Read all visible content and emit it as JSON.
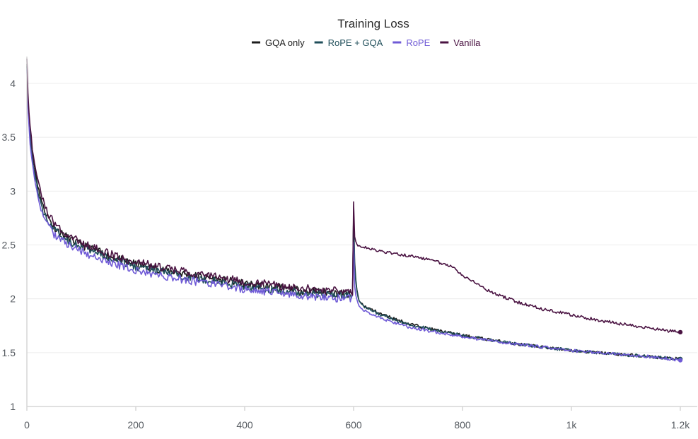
{
  "chart_data": {
    "type": "line",
    "title": "Training Loss",
    "xlabel": "",
    "ylabel": "",
    "xlim": [
      0,
      1220
    ],
    "ylim": [
      1,
      4.3
    ],
    "x_ticks": [
      0,
      200,
      400,
      600,
      800,
      1000,
      1200
    ],
    "x_tick_labels": [
      "0",
      "200",
      "400",
      "600",
      "800",
      "1k",
      "1.2k"
    ],
    "y_ticks": [
      1,
      1.5,
      2,
      2.5,
      3,
      3.5,
      4
    ],
    "y_tick_labels": [
      "1",
      "1.5",
      "2",
      "2.5",
      "3",
      "3.5",
      "4"
    ],
    "grid": true,
    "legend_position": "top-center",
    "series": [
      {
        "name": "GQA only",
        "color": "#1c1c1c",
        "points": [
          [
            0,
            4.2
          ],
          [
            2,
            3.85
          ],
          [
            5,
            3.6
          ],
          [
            10,
            3.35
          ],
          [
            15,
            3.2
          ],
          [
            20,
            3.05
          ],
          [
            25,
            2.95
          ],
          [
            30,
            2.85
          ],
          [
            40,
            2.75
          ],
          [
            50,
            2.67
          ],
          [
            60,
            2.62
          ],
          [
            80,
            2.55
          ],
          [
            100,
            2.5
          ],
          [
            150,
            2.4
          ],
          [
            200,
            2.32
          ],
          [
            250,
            2.27
          ],
          [
            300,
            2.22
          ],
          [
            350,
            2.18
          ],
          [
            400,
            2.14
          ],
          [
            450,
            2.11
          ],
          [
            500,
            2.08
          ],
          [
            550,
            2.06
          ],
          [
            598,
            2.04
          ],
          [
            600,
            2.8
          ],
          [
            602,
            2.35
          ],
          [
            605,
            2.1
          ],
          [
            610,
            1.98
          ],
          [
            620,
            1.93
          ],
          [
            650,
            1.86
          ],
          [
            700,
            1.77
          ],
          [
            750,
            1.71
          ],
          [
            800,
            1.66
          ],
          [
            850,
            1.62
          ],
          [
            900,
            1.58
          ],
          [
            950,
            1.55
          ],
          [
            1000,
            1.52
          ],
          [
            1050,
            1.5
          ],
          [
            1100,
            1.48
          ],
          [
            1150,
            1.46
          ],
          [
            1200,
            1.44
          ]
        ],
        "end_value": 1.44
      },
      {
        "name": "RoPE + GQA",
        "color": "#1f4e5a",
        "points": [
          [
            0,
            4.18
          ],
          [
            2,
            3.8
          ],
          [
            5,
            3.55
          ],
          [
            10,
            3.3
          ],
          [
            15,
            3.15
          ],
          [
            20,
            3.0
          ],
          [
            25,
            2.9
          ],
          [
            30,
            2.8
          ],
          [
            40,
            2.72
          ],
          [
            50,
            2.64
          ],
          [
            60,
            2.6
          ],
          [
            80,
            2.53
          ],
          [
            100,
            2.48
          ],
          [
            150,
            2.38
          ],
          [
            200,
            2.3
          ],
          [
            250,
            2.25
          ],
          [
            300,
            2.2
          ],
          [
            350,
            2.16
          ],
          [
            400,
            2.12
          ],
          [
            450,
            2.09
          ],
          [
            500,
            2.06
          ],
          [
            550,
            2.04
          ],
          [
            598,
            2.03
          ],
          [
            600,
            2.78
          ],
          [
            602,
            2.3
          ],
          [
            605,
            2.1
          ],
          [
            610,
            1.98
          ],
          [
            620,
            1.92
          ],
          [
            650,
            1.85
          ],
          [
            700,
            1.76
          ],
          [
            750,
            1.71
          ],
          [
            800,
            1.66
          ],
          [
            850,
            1.62
          ],
          [
            900,
            1.58
          ],
          [
            950,
            1.55
          ],
          [
            1000,
            1.52
          ],
          [
            1050,
            1.5
          ],
          [
            1100,
            1.48
          ],
          [
            1150,
            1.46
          ],
          [
            1200,
            1.44
          ]
        ],
        "end_value": 1.44
      },
      {
        "name": "RoPE",
        "color": "#6f5ad6",
        "points": [
          [
            0,
            4.15
          ],
          [
            2,
            3.75
          ],
          [
            5,
            3.5
          ],
          [
            10,
            3.25
          ],
          [
            15,
            3.1
          ],
          [
            20,
            2.95
          ],
          [
            25,
            2.85
          ],
          [
            30,
            2.76
          ],
          [
            40,
            2.68
          ],
          [
            50,
            2.6
          ],
          [
            60,
            2.56
          ],
          [
            80,
            2.49
          ],
          [
            100,
            2.44
          ],
          [
            150,
            2.34
          ],
          [
            200,
            2.26
          ],
          [
            250,
            2.21
          ],
          [
            300,
            2.17
          ],
          [
            350,
            2.13
          ],
          [
            400,
            2.09
          ],
          [
            450,
            2.06
          ],
          [
            500,
            2.03
          ],
          [
            550,
            2.01
          ],
          [
            598,
            2.0
          ],
          [
            600,
            2.52
          ],
          [
            602,
            2.12
          ],
          [
            605,
            2.0
          ],
          [
            610,
            1.93
          ],
          [
            620,
            1.89
          ],
          [
            650,
            1.82
          ],
          [
            700,
            1.74
          ],
          [
            750,
            1.69
          ],
          [
            800,
            1.65
          ],
          [
            850,
            1.61
          ],
          [
            900,
            1.58
          ],
          [
            950,
            1.55
          ],
          [
            1000,
            1.52
          ],
          [
            1050,
            1.5
          ],
          [
            1100,
            1.48
          ],
          [
            1150,
            1.46
          ],
          [
            1200,
            1.43
          ]
        ],
        "end_value": 1.43
      },
      {
        "name": "Vanilla",
        "color": "#4a1342",
        "points": [
          [
            0,
            4.25
          ],
          [
            2,
            3.9
          ],
          [
            5,
            3.65
          ],
          [
            10,
            3.4
          ],
          [
            15,
            3.25
          ],
          [
            20,
            3.1
          ],
          [
            25,
            3.0
          ],
          [
            30,
            2.9
          ],
          [
            40,
            2.78
          ],
          [
            50,
            2.7
          ],
          [
            60,
            2.65
          ],
          [
            80,
            2.58
          ],
          [
            100,
            2.52
          ],
          [
            150,
            2.42
          ],
          [
            200,
            2.34
          ],
          [
            250,
            2.29
          ],
          [
            300,
            2.24
          ],
          [
            350,
            2.2
          ],
          [
            400,
            2.16
          ],
          [
            450,
            2.13
          ],
          [
            500,
            2.1
          ],
          [
            550,
            2.08
          ],
          [
            598,
            2.07
          ],
          [
            600,
            2.9
          ],
          [
            602,
            2.58
          ],
          [
            605,
            2.52
          ],
          [
            610,
            2.49
          ],
          [
            650,
            2.44
          ],
          [
            700,
            2.4
          ],
          [
            750,
            2.35
          ],
          [
            780,
            2.3
          ],
          [
            800,
            2.22
          ],
          [
            850,
            2.07
          ],
          [
            900,
            1.97
          ],
          [
            950,
            1.9
          ],
          [
            1000,
            1.85
          ],
          [
            1050,
            1.8
          ],
          [
            1100,
            1.76
          ],
          [
            1150,
            1.72
          ],
          [
            1200,
            1.69
          ]
        ],
        "end_value": 1.69
      }
    ]
  }
}
